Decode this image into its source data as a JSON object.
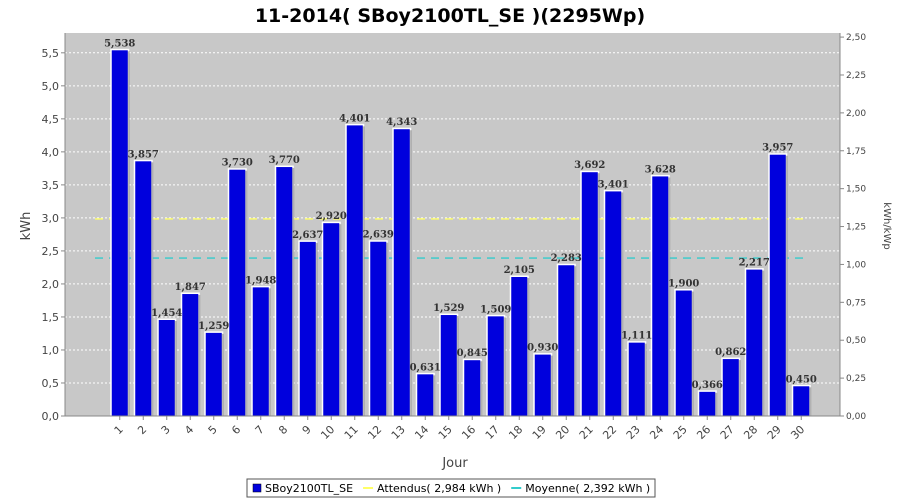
{
  "chart_data": {
    "type": "bar",
    "title": "11-2014( SBoy2100TL_SE )(2295Wp)",
    "xlabel": "Jour",
    "ylabel": "kWh",
    "y2label": "kWh/kWp",
    "categories": [
      "1",
      "2",
      "3",
      "4",
      "5",
      "6",
      "7",
      "8",
      "9",
      "10",
      "11",
      "12",
      "13",
      "14",
      "15",
      "16",
      "17",
      "18",
      "19",
      "20",
      "21",
      "22",
      "23",
      "24",
      "25",
      "26",
      "27",
      "28",
      "29",
      "30"
    ],
    "series": [
      {
        "name": "SBoy2100TL_SE",
        "color": "#0000dd",
        "values": [
          5.538,
          3.857,
          1.454,
          1.847,
          1.259,
          3.73,
          1.948,
          3.77,
          2.637,
          2.92,
          4.401,
          2.639,
          4.343,
          0.631,
          1.529,
          0.845,
          1.509,
          2.105,
          0.93,
          2.283,
          3.692,
          3.401,
          1.111,
          3.628,
          1.9,
          0.366,
          0.862,
          2.217,
          3.957,
          0.45
        ]
      }
    ],
    "value_labels": [
      "5,538",
      "3,857",
      "1,454",
      "1,847",
      "1,259",
      "3,730",
      "1,948",
      "3,770",
      "2,637",
      "2,920",
      "4,401",
      "2,639",
      "4,343",
      "0,631",
      "1,529",
      "0,845",
      "1,509",
      "2,105",
      "0,930",
      "2,283",
      "3,692",
      "3,401",
      "1,111",
      "3,628",
      "1,900",
      "0,366",
      "0,862",
      "2,217",
      "3,957",
      "0,450"
    ],
    "reference_lines": [
      {
        "name": "Attendus( 2,984 kWh )",
        "value": 2.984,
        "color": "#ffff66"
      },
      {
        "name": "Moyenne( 2,392 kWh )",
        "value": 2.392,
        "color": "#33cccc"
      }
    ],
    "ylim": [
      0,
      5.8
    ],
    "yticks": [
      0,
      0.5,
      1,
      1.5,
      2,
      2.5,
      3,
      3.5,
      4,
      4.5,
      5,
      5.5
    ],
    "ytick_labels": [
      "0,0",
      "0,5",
      "1,0",
      "1,5",
      "2,0",
      "2,5",
      "3,0",
      "3,5",
      "4,0",
      "4,5",
      "5,0",
      "5,5"
    ],
    "y2lim": [
      0,
      2.527
    ],
    "y2ticks": [
      0,
      0.25,
      0.5,
      0.75,
      1,
      1.25,
      1.5,
      1.75,
      2,
      2.25,
      2.5
    ],
    "y2tick_labels": [
      "0,00",
      "0,25",
      "0,50",
      "0,75",
      "1,00",
      "1,25",
      "1,50",
      "1,75",
      "2,00",
      "2,25",
      "2,50"
    ],
    "grid": true,
    "legend_position": "bottom",
    "plot_background": "#c8c8c8"
  }
}
